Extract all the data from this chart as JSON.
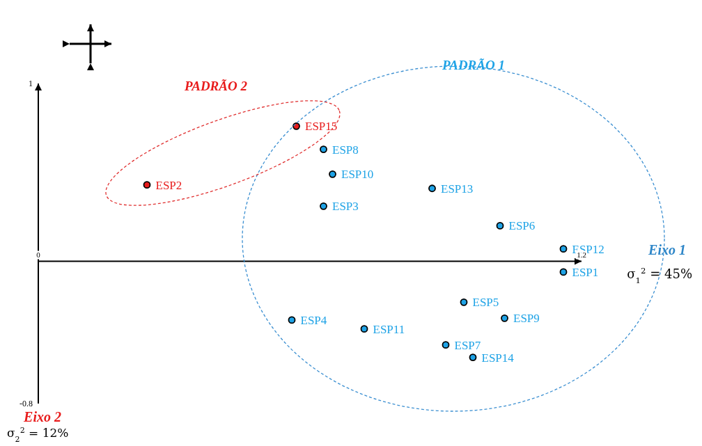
{
  "chart_data": {
    "type": "scatter",
    "xlim": [
      0,
      1.2
    ],
    "ylim": [
      -0.8,
      1
    ],
    "xticks": [
      0,
      1.2
    ],
    "yticks": [
      -0.8,
      1
    ],
    "marker": "circle",
    "series": [
      {
        "name": "PADRÃO 1",
        "color": "#1fa3e6",
        "x": [
          0.63,
          0.65,
          0.63,
          0.87,
          1.02,
          1.16,
          1.16,
          0.94,
          1.03,
          0.56,
          0.72,
          0.9,
          0.96
        ],
        "values": [
          0.63,
          0.49,
          0.31,
          0.41,
          0.2,
          0.07,
          -0.06,
          -0.23,
          -0.32,
          -0.33,
          -0.38,
          -0.47,
          -0.54
        ],
        "value_labels": [
          "ESP8",
          "ESP10",
          "ESP3",
          "ESP13",
          "ESP6",
          "ESP12",
          "ESP1",
          "ESP5",
          "ESP9",
          "ESP4",
          "ESP11",
          "ESP7",
          "ESP14"
        ]
      },
      {
        "name": "PADRÃO 2",
        "color": "#e81c1c",
        "x": [
          0.57,
          0.24
        ],
        "values": [
          0.76,
          0.43
        ],
        "value_labels": [
          "ESP15",
          "ESP2"
        ]
      }
    ],
    "annotations": [
      "Eixo 1",
      "σ$_{1}$$^{2}$ = 45%",
      "Eixo 2",
      "σ$_{2}$$^{2}$ = 12%"
    ]
  }
}
